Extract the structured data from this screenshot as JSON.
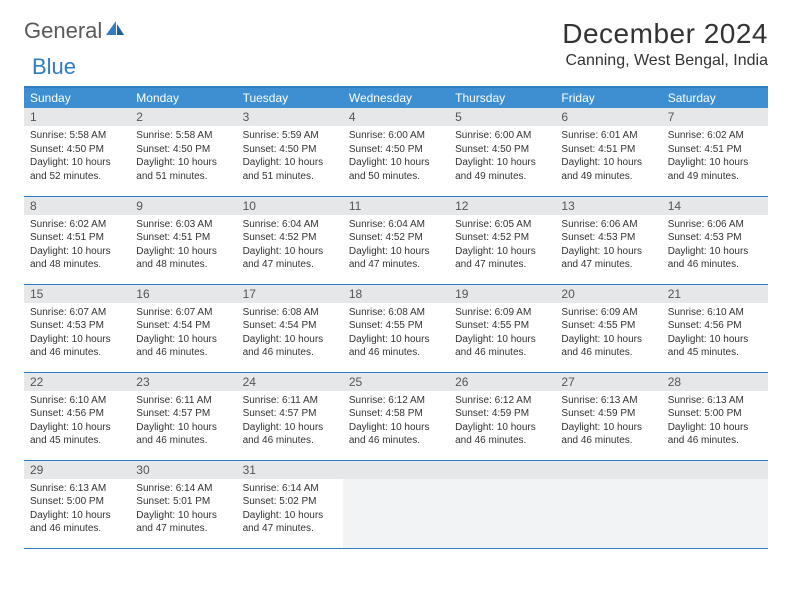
{
  "brand": {
    "name1": "General",
    "name2": "Blue"
  },
  "title": "December 2024",
  "location": "Canning, West Bengal, India",
  "colors": {
    "header_bg": "#3d8fd1",
    "accent": "#2f7cc0",
    "daynum_bg": "#e5e7e9",
    "empty_bg": "#f2f3f4",
    "text": "#333333",
    "logo_gray": "#5a5a5a",
    "logo_blue": "#2f7cc0"
  },
  "weekdays": [
    "Sunday",
    "Monday",
    "Tuesday",
    "Wednesday",
    "Thursday",
    "Friday",
    "Saturday"
  ],
  "weeks": [
    [
      {
        "n": "1",
        "sunrise": "5:58 AM",
        "sunset": "4:50 PM",
        "day_h": "10",
        "day_m": "52"
      },
      {
        "n": "2",
        "sunrise": "5:58 AM",
        "sunset": "4:50 PM",
        "day_h": "10",
        "day_m": "51"
      },
      {
        "n": "3",
        "sunrise": "5:59 AM",
        "sunset": "4:50 PM",
        "day_h": "10",
        "day_m": "51"
      },
      {
        "n": "4",
        "sunrise": "6:00 AM",
        "sunset": "4:50 PM",
        "day_h": "10",
        "day_m": "50"
      },
      {
        "n": "5",
        "sunrise": "6:00 AM",
        "sunset": "4:50 PM",
        "day_h": "10",
        "day_m": "49"
      },
      {
        "n": "6",
        "sunrise": "6:01 AM",
        "sunset": "4:51 PM",
        "day_h": "10",
        "day_m": "49"
      },
      {
        "n": "7",
        "sunrise": "6:02 AM",
        "sunset": "4:51 PM",
        "day_h": "10",
        "day_m": "49"
      }
    ],
    [
      {
        "n": "8",
        "sunrise": "6:02 AM",
        "sunset": "4:51 PM",
        "day_h": "10",
        "day_m": "48"
      },
      {
        "n": "9",
        "sunrise": "6:03 AM",
        "sunset": "4:51 PM",
        "day_h": "10",
        "day_m": "48"
      },
      {
        "n": "10",
        "sunrise": "6:04 AM",
        "sunset": "4:52 PM",
        "day_h": "10",
        "day_m": "47"
      },
      {
        "n": "11",
        "sunrise": "6:04 AM",
        "sunset": "4:52 PM",
        "day_h": "10",
        "day_m": "47"
      },
      {
        "n": "12",
        "sunrise": "6:05 AM",
        "sunset": "4:52 PM",
        "day_h": "10",
        "day_m": "47"
      },
      {
        "n": "13",
        "sunrise": "6:06 AM",
        "sunset": "4:53 PM",
        "day_h": "10",
        "day_m": "47"
      },
      {
        "n": "14",
        "sunrise": "6:06 AM",
        "sunset": "4:53 PM",
        "day_h": "10",
        "day_m": "46"
      }
    ],
    [
      {
        "n": "15",
        "sunrise": "6:07 AM",
        "sunset": "4:53 PM",
        "day_h": "10",
        "day_m": "46"
      },
      {
        "n": "16",
        "sunrise": "6:07 AM",
        "sunset": "4:54 PM",
        "day_h": "10",
        "day_m": "46"
      },
      {
        "n": "17",
        "sunrise": "6:08 AM",
        "sunset": "4:54 PM",
        "day_h": "10",
        "day_m": "46"
      },
      {
        "n": "18",
        "sunrise": "6:08 AM",
        "sunset": "4:55 PM",
        "day_h": "10",
        "day_m": "46"
      },
      {
        "n": "19",
        "sunrise": "6:09 AM",
        "sunset": "4:55 PM",
        "day_h": "10",
        "day_m": "46"
      },
      {
        "n": "20",
        "sunrise": "6:09 AM",
        "sunset": "4:55 PM",
        "day_h": "10",
        "day_m": "46"
      },
      {
        "n": "21",
        "sunrise": "6:10 AM",
        "sunset": "4:56 PM",
        "day_h": "10",
        "day_m": "45"
      }
    ],
    [
      {
        "n": "22",
        "sunrise": "6:10 AM",
        "sunset": "4:56 PM",
        "day_h": "10",
        "day_m": "45"
      },
      {
        "n": "23",
        "sunrise": "6:11 AM",
        "sunset": "4:57 PM",
        "day_h": "10",
        "day_m": "46"
      },
      {
        "n": "24",
        "sunrise": "6:11 AM",
        "sunset": "4:57 PM",
        "day_h": "10",
        "day_m": "46"
      },
      {
        "n": "25",
        "sunrise": "6:12 AM",
        "sunset": "4:58 PM",
        "day_h": "10",
        "day_m": "46"
      },
      {
        "n": "26",
        "sunrise": "6:12 AM",
        "sunset": "4:59 PM",
        "day_h": "10",
        "day_m": "46"
      },
      {
        "n": "27",
        "sunrise": "6:13 AM",
        "sunset": "4:59 PM",
        "day_h": "10",
        "day_m": "46"
      },
      {
        "n": "28",
        "sunrise": "6:13 AM",
        "sunset": "5:00 PM",
        "day_h": "10",
        "day_m": "46"
      }
    ],
    [
      {
        "n": "29",
        "sunrise": "6:13 AM",
        "sunset": "5:00 PM",
        "day_h": "10",
        "day_m": "46"
      },
      {
        "n": "30",
        "sunrise": "6:14 AM",
        "sunset": "5:01 PM",
        "day_h": "10",
        "day_m": "47"
      },
      {
        "n": "31",
        "sunrise": "6:14 AM",
        "sunset": "5:02 PM",
        "day_h": "10",
        "day_m": "47"
      },
      null,
      null,
      null,
      null
    ]
  ],
  "labels": {
    "sunrise": "Sunrise:",
    "sunset": "Sunset:",
    "daylight_prefix": "Daylight:",
    "hours_word": "hours",
    "and_word": "and",
    "minutes_word": "minutes."
  }
}
